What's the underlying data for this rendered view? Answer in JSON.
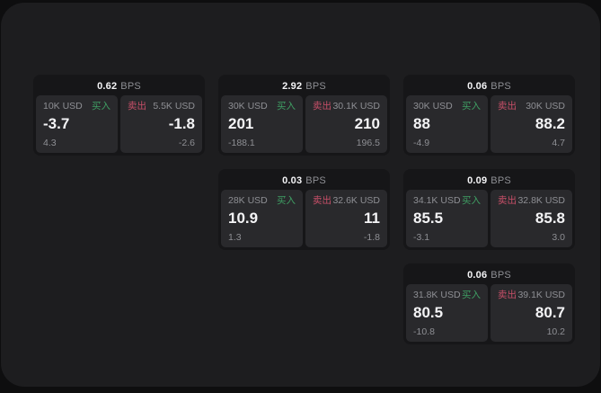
{
  "colors": {
    "window_bg": "#1d1d1f",
    "card_bg": "#161618",
    "panel_bg": "#29292c",
    "text_dim": "#8e8f94",
    "text_bright": "#f4f4f6",
    "buy_green": "#3f9e63",
    "sell_red": "#c74f68"
  },
  "bps_unit": "BPS",
  "buy_label": "买入",
  "sell_label": "卖出",
  "cards": [
    {
      "bps": "0.62",
      "buy": {
        "amount": "10K USD",
        "side": "买入",
        "main": "-3.7",
        "sub": "4.3"
      },
      "sell": {
        "amount": "5.5K USD",
        "side": "卖出",
        "main": "-1.8",
        "sub": "-2.6"
      }
    },
    {
      "bps": "2.92",
      "buy": {
        "amount": "30K USD",
        "side": "买入",
        "main": "201",
        "sub": "-188.1"
      },
      "sell": {
        "amount": "30.1K USD",
        "side": "卖出",
        "main": "210",
        "sub": "196.5"
      }
    },
    {
      "bps": "0.06",
      "buy": {
        "amount": "30K USD",
        "side": "买入",
        "main": "88",
        "sub": "-4.9"
      },
      "sell": {
        "amount": "30K USD",
        "side": "卖出",
        "main": "88.2",
        "sub": "4.7"
      }
    },
    {
      "bps": "0.03",
      "buy": {
        "amount": "28K USD",
        "side": "买入",
        "main": "10.9",
        "sub": "1.3"
      },
      "sell": {
        "amount": "32.6K USD",
        "side": "卖出",
        "main": "11",
        "sub": "-1.8"
      }
    },
    {
      "bps": "0.09",
      "buy": {
        "amount": "34.1K USD",
        "side": "买入",
        "main": "85.5",
        "sub": "-3.1"
      },
      "sell": {
        "amount": "32.8K USD",
        "side": "卖出",
        "main": "85.8",
        "sub": "3.0"
      }
    },
    {
      "bps": "0.06",
      "buy": {
        "amount": "31.8K USD",
        "side": "买入",
        "main": "80.5",
        "sub": "-10.8"
      },
      "sell": {
        "amount": "39.1K USD",
        "side": "卖出",
        "main": "80.7",
        "sub": "10.2"
      }
    }
  ],
  "layout": {
    "columns": [
      [
        0
      ],
      [
        1,
        3
      ],
      [
        2,
        4,
        5
      ]
    ]
  }
}
